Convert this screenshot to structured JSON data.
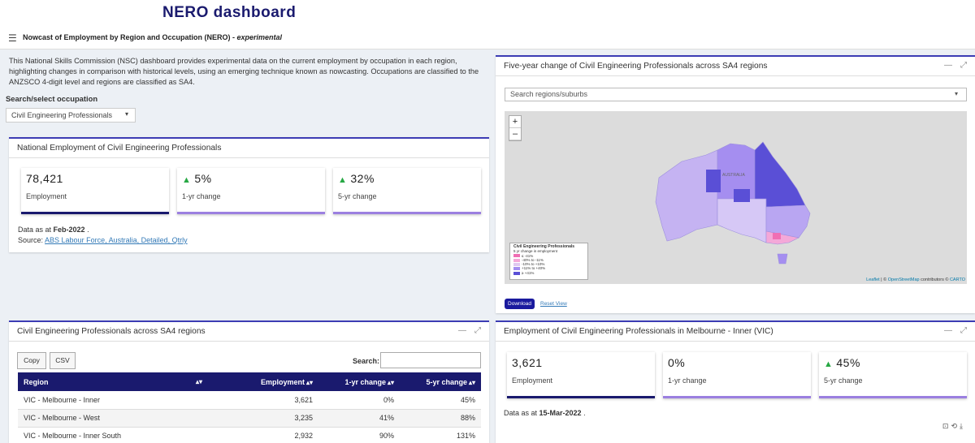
{
  "header": {
    "title": "NERO dashboard"
  },
  "subheader": {
    "menu_icon": "hamburger-icon",
    "title": "Nowcast of Employment by Region and Occupation (NERO) - ",
    "title_tag": "experimental"
  },
  "intro": {
    "text": "This National Skills Commission (NSC) dashboard provides experimental data on the current employment by occupation in each region, highlighting changes in comparison with historical levels, using an emerging technique known as nowcasting. Occupations are classified to the ANZSCO 4-digit level and regions are classified as SA4."
  },
  "occupation_select": {
    "label": "Search/select occupation",
    "value": "Civil Engineering Professionals"
  },
  "national_box": {
    "title": "National Employment of Civil Engineering Professionals",
    "cards": [
      {
        "value": "78,421",
        "label": "Employment",
        "trend": "",
        "bar_color": "#1a1a6e"
      },
      {
        "value": "5%",
        "label": "1-yr change",
        "trend": "up",
        "bar_color": "#9b7fe0"
      },
      {
        "value": "32%",
        "label": "5-yr change",
        "trend": "up",
        "bar_color": "#9b7fe0"
      }
    ],
    "data_as_prefix": "Data as at ",
    "data_as_date": "Feb-2022",
    "data_as_suffix": " .",
    "source_prefix": "Source: ",
    "source_link": "ABS Labour Force, Australia, Detailed, Qtrly"
  },
  "map_box": {
    "title": "Five-year change of Civil Engineering Professionals across SA4 regions",
    "search_placeholder": "Search regions/suburbs",
    "zoom_in": "+",
    "zoom_out": "–",
    "map_label": "AUSTRALIA",
    "legend": {
      "title": "Civil Engineering Professionals",
      "subtitle": "5 yr change in employment",
      "items": [
        {
          "label": "≤ -41%",
          "color": "#f06fb4"
        },
        {
          "label": "-40% to -11%",
          "color": "#f4a8d8"
        },
        {
          "label": "-10% to +10%",
          "color": "#e0c8f0"
        },
        {
          "label": "+11% to +40%",
          "color": "#a58ef0"
        },
        {
          "label": "≥ +41%",
          "color": "#5a4fd6"
        }
      ]
    },
    "attribution_leaflet": "Leaflet",
    "attribution_mid": " | © ",
    "attribution_osm": "OpenStreetMap",
    "attribution_contrib": " contributors © ",
    "attribution_carto": "CARTO",
    "download_label": "Download",
    "reset_label": "Reset View"
  },
  "table_box": {
    "title": "Civil Engineering Professionals across SA4 regions",
    "copy_label": "Copy",
    "csv_label": "CSV",
    "search_label": "Search:",
    "columns": [
      "Region",
      "Employment",
      "1-yr change",
      "5-yr change"
    ],
    "rows": [
      [
        "VIC - Melbourne - Inner",
        "3,621",
        "0%",
        "45%"
      ],
      [
        "VIC - Melbourne - West",
        "3,235",
        "41%",
        "88%"
      ],
      [
        "VIC - Melbourne - Inner South",
        "2,932",
        "90%",
        "131%"
      ]
    ]
  },
  "regional_box": {
    "title": "Employment of Civil Engineering Professionals in Melbourne - Inner (VIC)",
    "cards": [
      {
        "value": "3,621",
        "label": "Employment",
        "trend": "",
        "bar_color": "#1a1a6e"
      },
      {
        "value": "0%",
        "label": "1-yr change",
        "trend": "",
        "bar_color": "#9b7fe0"
      },
      {
        "value": "45%",
        "label": "5-yr change",
        "trend": "up",
        "bar_color": "#9b7fe0"
      }
    ],
    "data_as_prefix": "Data as at ",
    "data_as_date": "15-Mar-2022",
    "data_as_suffix": " ."
  }
}
